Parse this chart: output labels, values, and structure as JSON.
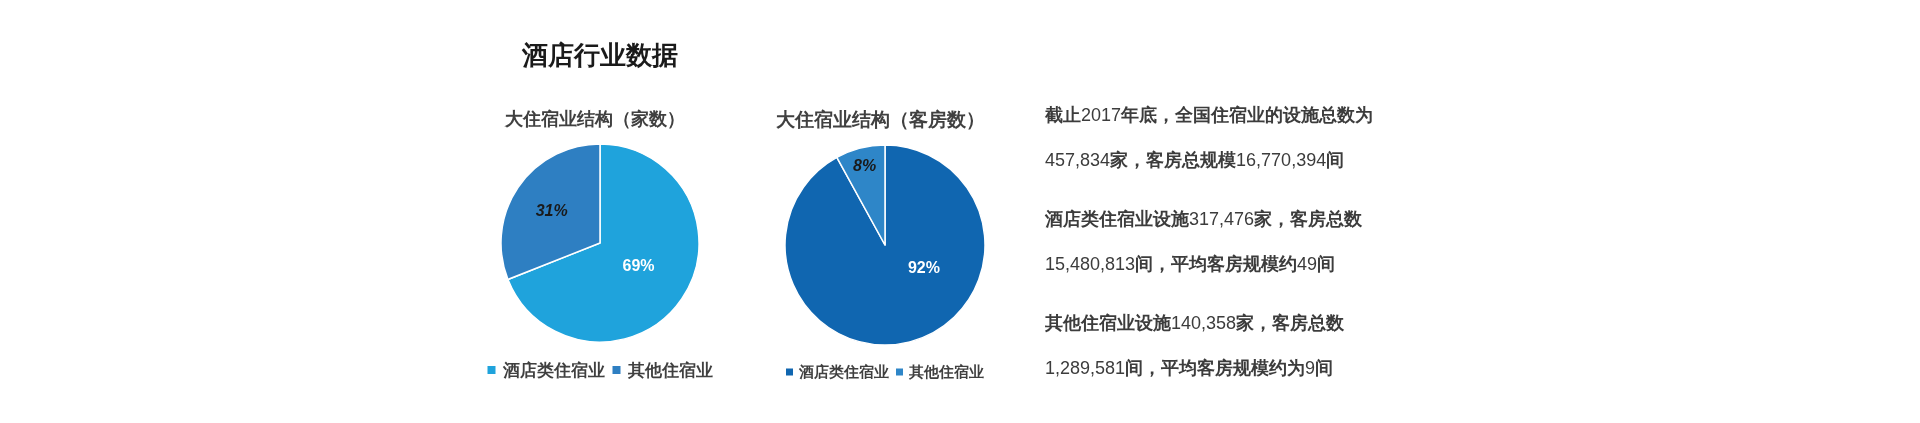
{
  "chart_data": [
    {
      "type": "pie",
      "title": "酒店行业数据",
      "subtitle": "大住宿业结构（家数）",
      "categories": [
        "酒店类住宿业",
        "其他住宿业"
      ],
      "values": [
        69,
        31
      ],
      "colors": [
        "#1fa3dc",
        "#2e7fc2"
      ],
      "value_labels": [
        "69%",
        "31%"
      ],
      "legend": "bottom"
    },
    {
      "type": "pie",
      "title": "大住宿业结构（客房数）",
      "categories": [
        "酒店类住宿业",
        "其他住宿业"
      ],
      "values": [
        92,
        8
      ],
      "colors": [
        "#1066b0",
        "#2e86c8"
      ],
      "value_labels": [
        "92%",
        "8%"
      ],
      "legend": "bottom"
    },
    {
      "type": "other",
      "annotations": [
        "截止2017年底，全国住宿业的设施总数为457,834家，客房总规模16,770,394间",
        "酒店类住宿业设施317,476家，客房总数15,480,813间，平均客房规模约49间",
        "其他住宿业设施140,358家，客房总数1,289,581间，平均客房规模约为9间"
      ]
    }
  ]
}
